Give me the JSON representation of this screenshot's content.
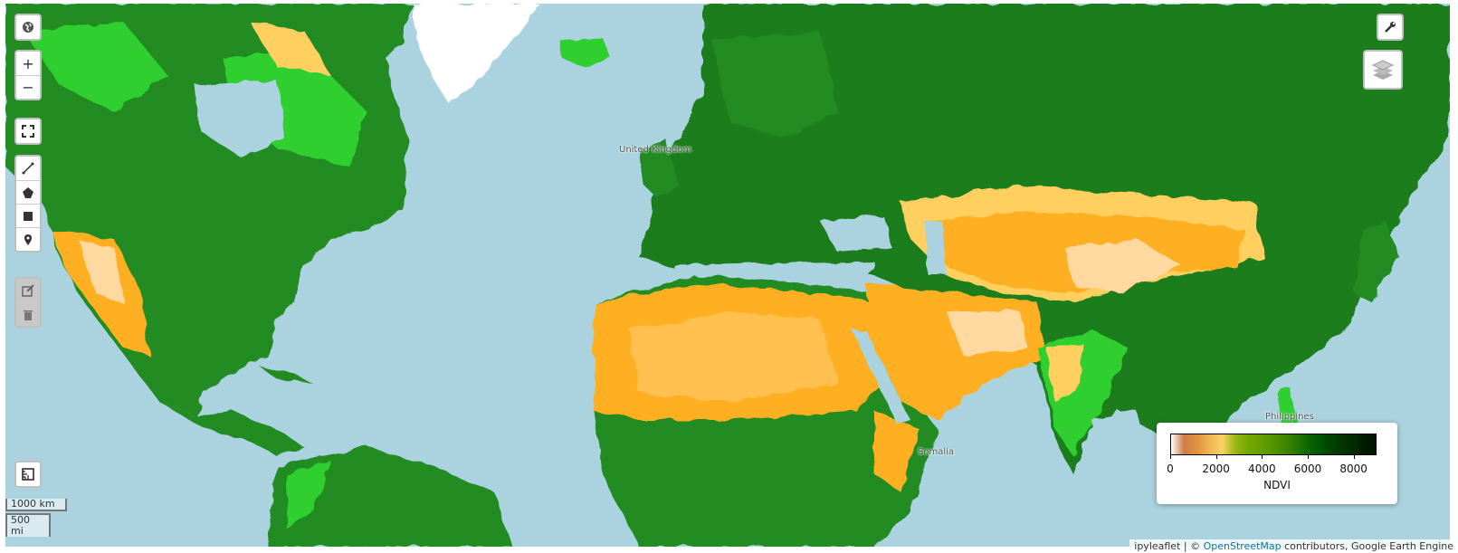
{
  "map": {
    "place_labels": [
      "United Kingdom",
      "Philippines",
      "Somalia"
    ],
    "colors": {
      "water": "#aad3df",
      "ice": "#ffffff",
      "dense_veg": "#1e7d1e",
      "forest": "#238b23",
      "grass": "#2ecf2e",
      "desert": "#ffb020",
      "barren": "#ffd9a0"
    }
  },
  "controls": {
    "globe_icon": "globe-icon",
    "zoom_in": "+",
    "zoom_out": "−",
    "fullscreen_icon": "fullscreen-icon",
    "draw_tools": [
      "polyline-icon",
      "polygon-icon",
      "rectangle-icon",
      "marker-icon"
    ],
    "edit_tools": [
      "edit-icon",
      "trash-icon"
    ],
    "measure_icon": "ruler-icon",
    "wrench_icon": "wrench-icon",
    "layers_icon": "layers-icon"
  },
  "scale": {
    "metric": "1000 km",
    "imperial": "500 mi"
  },
  "attribution": {
    "prefix": "ipyleaflet | © ",
    "link": "OpenStreetMap",
    "suffix": " contributors, Google Earth Engine"
  },
  "legend": {
    "title": "NDVI",
    "ticks": [
      "0",
      "2000",
      "4000",
      "6000",
      "8000"
    ],
    "colors": [
      "#ffffff",
      "#ce7e45",
      "#df923d",
      "#f1b555",
      "#fcd163",
      "#99b718",
      "#74a901",
      "#66a000",
      "#529400",
      "#3e8601",
      "#207401",
      "#056201",
      "#004c00",
      "#023b01",
      "#012e01",
      "#011d01",
      "#011301"
    ]
  }
}
